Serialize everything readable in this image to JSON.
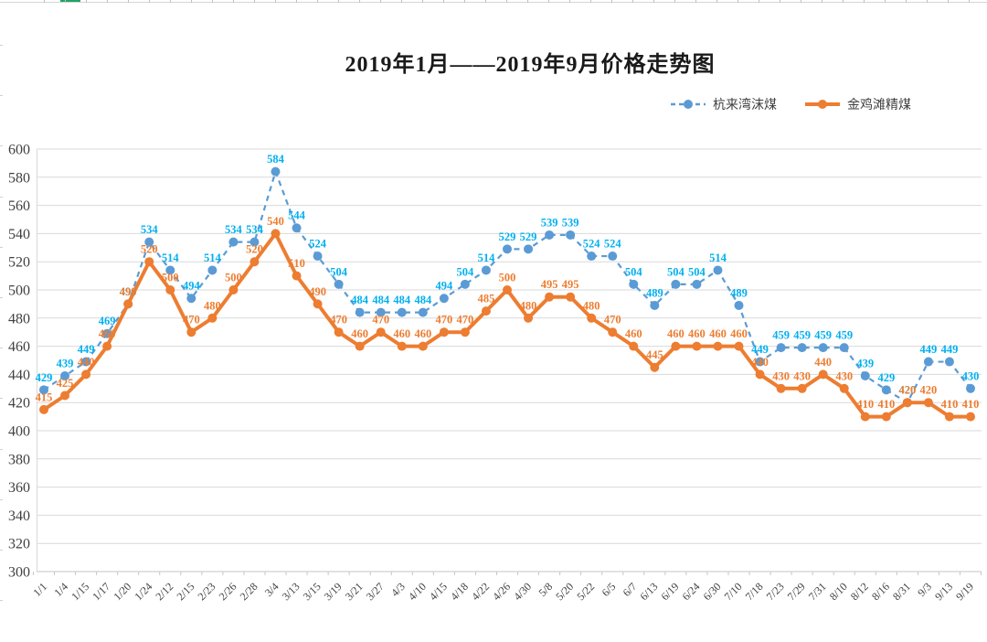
{
  "chart_data": {
    "type": "line",
    "title": "2019年1月——2019年9月价格走势图",
    "xlabel": "",
    "ylabel": "",
    "categories": [
      "1/1",
      "1/4",
      "1/15",
      "1/17",
      "1/20",
      "1/24",
      "2/12",
      "2/15",
      "2/23",
      "2/26",
      "2/28",
      "3/4",
      "3/13",
      "3/15",
      "3/19",
      "3/21",
      "3/27",
      "4/3",
      "4/10",
      "4/15",
      "4/18",
      "4/22",
      "4/26",
      "4/30",
      "5/8",
      "5/20",
      "5/22",
      "6/5",
      "6/7",
      "6/13",
      "6/19",
      "6/24",
      "6/30",
      "7/10",
      "7/18",
      "7/23",
      "7/29",
      "7/31",
      "8/10",
      "8/12",
      "8/16",
      "8/31",
      "9/3",
      "9/13",
      "9/19"
    ],
    "series": [
      {
        "name": "杭来湾沫煤",
        "line_style": "dashed",
        "color": "#5B9BD5",
        "label_color": "#00B0F0",
        "values": [
          429,
          439,
          449,
          469,
          490,
          534,
          514,
          494,
          514,
          534,
          534,
          584,
          544,
          524,
          504,
          484,
          484,
          484,
          484,
          494,
          504,
          514,
          529,
          529,
          539,
          539,
          524,
          524,
          504,
          489,
          504,
          504,
          514,
          489,
          449,
          459,
          459,
          459,
          459,
          439,
          429,
          420,
          449,
          449,
          430
        ]
      },
      {
        "name": "金鸡滩精煤",
        "line_style": "solid",
        "color": "#ED7D31",
        "label_color": "#ED7D31",
        "values": [
          415,
          425,
          440,
          460,
          490,
          520,
          500,
          470,
          480,
          500,
          520,
          540,
          510,
          490,
          470,
          460,
          470,
          460,
          460,
          470,
          470,
          485,
          500,
          480,
          495,
          495,
          480,
          470,
          460,
          445,
          460,
          460,
          460,
          460,
          440,
          430,
          430,
          440,
          430,
          410,
          410,
          420,
          420,
          410,
          410
        ]
      }
    ],
    "y_ticks": [
      600,
      580,
      560,
      540,
      520,
      500,
      480,
      460,
      440,
      420,
      400,
      380,
      360,
      340,
      320,
      300
    ],
    "ylim": [
      300,
      600
    ],
    "grid": true,
    "data_labels": true,
    "legend_position": "top-right",
    "grid_color": "#D9D9D9",
    "axis_color": "#C6C6C6",
    "axis_text_color": "#404040"
  }
}
